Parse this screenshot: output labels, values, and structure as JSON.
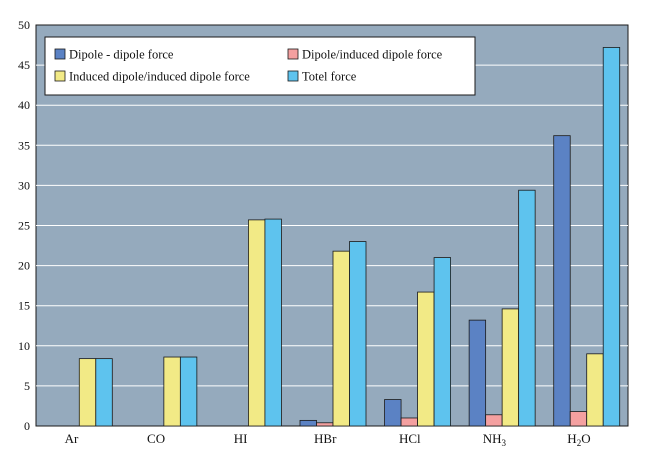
{
  "chart_data": {
    "type": "bar",
    "title": "",
    "xlabel": "",
    "ylabel": "",
    "ylim": [
      0,
      50
    ],
    "yticks": [
      0,
      5,
      10,
      15,
      20,
      25,
      30,
      35,
      40,
      45,
      50
    ],
    "grid": true,
    "legend_position": "top-left",
    "categories": [
      {
        "label": "Ar"
      },
      {
        "label": "CO"
      },
      {
        "label": "HI"
      },
      {
        "label": "HBr"
      },
      {
        "label": "HCl"
      },
      {
        "label": "NH",
        "sub": "3"
      },
      {
        "label": "H",
        "sub": "2",
        "suffix": "O"
      }
    ],
    "series": [
      {
        "name": "Dipole - dipole force",
        "color": "#5b82c4",
        "values": [
          0,
          0,
          0,
          0.7,
          3.3,
          13.2,
          36.2
        ]
      },
      {
        "name": "Dipole/induced dipole force",
        "color": "#f4a0a0",
        "values": [
          0,
          0,
          0,
          0.4,
          1.0,
          1.4,
          1.8
        ]
      },
      {
        "name": "Induced dipole/induced dipole force",
        "color": "#f2ea86",
        "values": [
          8.4,
          8.6,
          25.7,
          21.8,
          16.7,
          14.6,
          9.0
        ]
      },
      {
        "name": "Totel force",
        "color": "#5ec3ee",
        "values": [
          8.4,
          8.6,
          25.8,
          23.0,
          21.0,
          29.4,
          47.2
        ]
      }
    ]
  },
  "colors": {
    "plot_background": "#95aabd",
    "gridline": "#ffffff",
    "legend_background": "#ffffff"
  }
}
